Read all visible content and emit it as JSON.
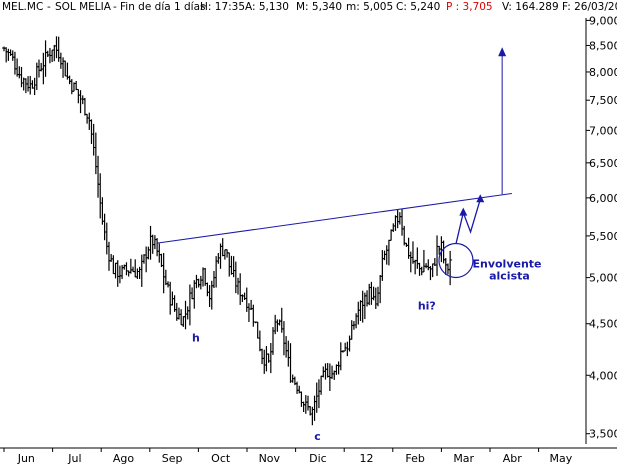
{
  "header": {
    "symbol": "MEL.MC",
    "name": "SOL MELIA",
    "period": "Fin de día 1 días",
    "time": "H: 17:35",
    "open": "A: 5,130",
    "high": "M: 5,340",
    "low": "m: 5,005",
    "close": "C: 5,240",
    "change": "P : 3,705",
    "volume": "V: 164.289",
    "date": "F: 26/03/20"
  },
  "chart_data": {
    "type": "bar",
    "subtype": "ohlc-price",
    "x_tick_labels": [
      "Jun",
      "Jul",
      "Ago",
      "Sep",
      "Oct",
      "Nov",
      "Dic",
      "12",
      "Feb",
      "Mar",
      "Abr",
      "May"
    ],
    "y_tick_labels": [
      "3,500",
      "4,000",
      "4,500",
      "5,000",
      "5,500",
      "6,000",
      "6,500",
      "7,000",
      "7,500",
      "8,000",
      "8,500",
      "9,000"
    ],
    "y_ticks": [
      3.5,
      4.0,
      4.5,
      5.0,
      5.5,
      6.0,
      6.5,
      7.0,
      7.5,
      8.0,
      8.5,
      9.0
    ],
    "ylim": [
      3.45,
      9.05
    ],
    "y_scale": "log",
    "price_path": [
      [
        0.0,
        8.45
      ],
      [
        0.2,
        8.2
      ],
      [
        0.35,
        7.9
      ],
      [
        0.55,
        7.75
      ],
      [
        0.75,
        8.1
      ],
      [
        0.9,
        8.3
      ],
      [
        1.0,
        8.5
      ],
      [
        1.15,
        8.35
      ],
      [
        1.3,
        7.9
      ],
      [
        1.45,
        7.7
      ],
      [
        1.6,
        7.5
      ],
      [
        1.75,
        7.2
      ],
      [
        1.9,
        6.4
      ],
      [
        2.0,
        5.8
      ],
      [
        2.1,
        5.4
      ],
      [
        2.25,
        5.1
      ],
      [
        2.4,
        5.05
      ],
      [
        2.6,
        5.1
      ],
      [
        2.8,
        5.05
      ],
      [
        2.95,
        5.35
      ],
      [
        3.05,
        5.45
      ],
      [
        3.15,
        5.3
      ],
      [
        3.25,
        5.1
      ],
      [
        3.4,
        4.8
      ],
      [
        3.55,
        4.6
      ],
      [
        3.7,
        4.55
      ],
      [
        3.9,
        4.9
      ],
      [
        4.1,
        5.1
      ],
      [
        4.25,
        4.75
      ],
      [
        4.4,
        5.3
      ],
      [
        4.55,
        5.35
      ],
      [
        4.65,
        5.1
      ],
      [
        4.8,
        4.9
      ],
      [
        5.0,
        4.75
      ],
      [
        5.15,
        4.55
      ],
      [
        5.3,
        4.2
      ],
      [
        5.45,
        4.1
      ],
      [
        5.6,
        4.55
      ],
      [
        5.75,
        4.35
      ],
      [
        5.9,
        4.0
      ],
      [
        6.05,
        3.9
      ],
      [
        6.2,
        3.72
      ],
      [
        6.35,
        3.68
      ],
      [
        6.5,
        3.9
      ],
      [
        6.65,
        4.05
      ],
      [
        6.8,
        4.0
      ],
      [
        6.95,
        4.25
      ],
      [
        7.1,
        4.3
      ],
      [
        7.25,
        4.6
      ],
      [
        7.4,
        4.75
      ],
      [
        7.55,
        4.85
      ],
      [
        7.65,
        4.65
      ],
      [
        7.8,
        5.2
      ],
      [
        7.95,
        5.45
      ],
      [
        8.05,
        5.65
      ],
      [
        8.15,
        5.8
      ],
      [
        8.25,
        5.4
      ],
      [
        8.4,
        5.2
      ],
      [
        8.55,
        5.1
      ],
      [
        8.7,
        5.15
      ],
      [
        8.8,
        5.05
      ],
      [
        8.92,
        5.35
      ],
      [
        9.0,
        5.35
      ],
      [
        9.1,
        5.05
      ],
      [
        9.2,
        5.25
      ]
    ],
    "annotations": [
      {
        "text": "h",
        "x": 3.95,
        "y": 4.32
      },
      {
        "text": "c",
        "x": 6.45,
        "y": 3.45
      },
      {
        "text": "hi?",
        "x": 8.7,
        "y": 4.65
      },
      {
        "text": "Envolvente",
        "x": 10.35,
        "y": 5.12
      },
      {
        "text": "alcista",
        "x": 10.4,
        "y": 4.98
      }
    ],
    "neckline": [
      [
        3.15,
        5.41
      ],
      [
        10.45,
        6.06
      ]
    ],
    "target_arrow": [
      [
        10.25,
        6.05
      ],
      [
        10.25,
        8.35
      ]
    ],
    "zigzag_arrow": [
      [
        9.3,
        5.4
      ],
      [
        9.45,
        5.8
      ],
      [
        9.6,
        5.55
      ],
      [
        9.8,
        5.98
      ]
    ],
    "circle_center": [
      9.3,
      5.2
    ],
    "grid": false,
    "colors": {
      "bars": "#000000",
      "drawings": "#1a1aa8",
      "header_red": "#e00000"
    }
  }
}
